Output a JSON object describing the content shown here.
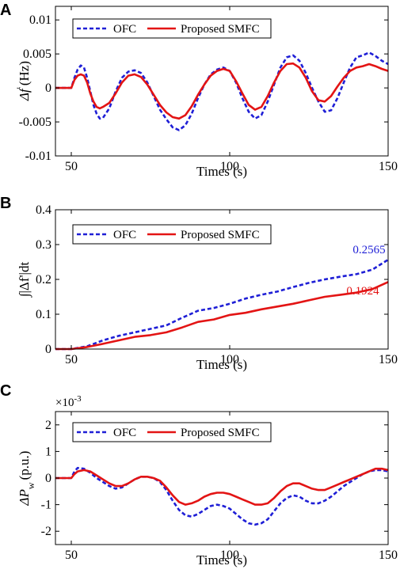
{
  "chart_data": [
    {
      "panel": "A",
      "type": "line",
      "xlabel": "Times (s)",
      "ylabel_main": "Δf",
      "ylabel_sup": "'",
      "ylabel_unit": "(Hz)",
      "xlim": [
        45,
        150
      ],
      "ylim": [
        -0.01,
        0.012
      ],
      "xticks": [
        50,
        100,
        150
      ],
      "xtick_labels": [
        "50",
        "100",
        "150"
      ],
      "yticks": [
        -0.01,
        -0.005,
        0,
        0.005,
        0.01
      ],
      "ytick_labels": [
        "-0.01",
        "-0.005",
        "0",
        "0.005",
        "0.01"
      ],
      "legend": "top-left",
      "series": [
        {
          "name": "OFC",
          "color": "#1f1fd6",
          "dash": true,
          "x": [
            45,
            50,
            51,
            52,
            53,
            54,
            55,
            56,
            57,
            58,
            59,
            60,
            62,
            64,
            66,
            68,
            70,
            72,
            74,
            76,
            78,
            80,
            82,
            84,
            86,
            88,
            90,
            92,
            94,
            96,
            98,
            100,
            102,
            104,
            106,
            108,
            110,
            112,
            114,
            116,
            118,
            120,
            122,
            124,
            126,
            128,
            130,
            132,
            134,
            136,
            138,
            140,
            142,
            144,
            146,
            148,
            150
          ],
          "y": [
            0,
            0,
            0.0015,
            0.0027,
            0.0033,
            0.003,
            0.0015,
            -0.0005,
            -0.0025,
            -0.0038,
            -0.0045,
            -0.0044,
            -0.003,
            -0.0005,
            0.0015,
            0.0024,
            0.0026,
            0.0022,
            0.0008,
            -0.0012,
            -0.0032,
            -0.0046,
            -0.0058,
            -0.0062,
            -0.0055,
            -0.0038,
            -0.0015,
            0.0005,
            0.002,
            0.0027,
            0.003,
            0.0025,
            0.0008,
            -0.0015,
            -0.0035,
            -0.0045,
            -0.004,
            -0.002,
            0.0005,
            0.003,
            0.0045,
            0.0048,
            0.004,
            0.0022,
            0.0,
            -0.002,
            -0.0035,
            -0.0033,
            -0.0015,
            0.0008,
            0.003,
            0.0045,
            0.0048,
            0.0052,
            0.0047,
            0.004,
            0.0035
          ]
        },
        {
          "name": "Proposed SMFC",
          "color": "#e31414",
          "dash": false,
          "x": [
            45,
            50,
            51,
            52,
            53,
            54,
            55,
            56,
            57,
            58,
            59,
            60,
            62,
            64,
            66,
            68,
            70,
            72,
            74,
            76,
            78,
            80,
            82,
            84,
            86,
            88,
            90,
            92,
            94,
            96,
            98,
            100,
            102,
            104,
            106,
            108,
            110,
            112,
            114,
            116,
            118,
            120,
            122,
            124,
            126,
            128,
            130,
            132,
            134,
            136,
            138,
            140,
            142,
            144,
            146,
            148,
            150
          ],
          "y": [
            0,
            0,
            0.0012,
            0.0018,
            0.002,
            0.0018,
            0.0008,
            -0.0008,
            -0.002,
            -0.0028,
            -0.003,
            -0.0028,
            -0.0022,
            -0.0008,
            0.0008,
            0.0018,
            0.002,
            0.0016,
            0.0005,
            -0.001,
            -0.0025,
            -0.0036,
            -0.0043,
            -0.0045,
            -0.004,
            -0.0027,
            -0.001,
            0.0005,
            0.0018,
            0.0025,
            0.0028,
            0.0025,
            0.001,
            -0.0008,
            -0.0025,
            -0.0032,
            -0.0028,
            -0.0012,
            0.0008,
            0.0025,
            0.0035,
            0.0036,
            0.003,
            0.0015,
            -0.0005,
            -0.0018,
            -0.002,
            -0.0012,
            0.0002,
            0.0015,
            0.0025,
            0.003,
            0.0032,
            0.0035,
            0.0032,
            0.0028,
            0.0025
          ]
        }
      ]
    },
    {
      "panel": "B",
      "type": "line",
      "xlabel": "Times (s)",
      "ylabel": "∫|Δf'|dt",
      "xlim": [
        45,
        150
      ],
      "ylim": [
        0,
        0.4
      ],
      "xticks": [
        50,
        100,
        150
      ],
      "xtick_labels": [
        "50",
        "100",
        "150"
      ],
      "yticks": [
        0,
        0.1,
        0.2,
        0.3,
        0.4
      ],
      "ytick_labels": [
        "0",
        "0.1",
        "0.2",
        "0.3",
        "0.4"
      ],
      "legend": "top-left",
      "annotations": [
        {
          "text": "0.2565",
          "color": "#1f1fd6",
          "x": 144,
          "y": 0.275
        },
        {
          "text": "0.1924",
          "color": "#e31414",
          "x": 142,
          "y": 0.157
        }
      ],
      "series": [
        {
          "name": "OFC",
          "color": "#1f1fd6",
          "dash": true,
          "x": [
            45,
            50,
            55,
            60,
            65,
            70,
            75,
            80,
            85,
            90,
            95,
            100,
            105,
            110,
            115,
            120,
            125,
            130,
            135,
            140,
            145,
            150
          ],
          "y": [
            0,
            0,
            0.008,
            0.025,
            0.038,
            0.048,
            0.058,
            0.068,
            0.09,
            0.11,
            0.118,
            0.13,
            0.145,
            0.156,
            0.165,
            0.178,
            0.19,
            0.2,
            0.208,
            0.215,
            0.228,
            0.2565
          ]
        },
        {
          "name": "Proposed SMFC",
          "color": "#e31414",
          "dash": false,
          "x": [
            45,
            50,
            55,
            60,
            65,
            70,
            75,
            80,
            85,
            90,
            95,
            100,
            105,
            110,
            115,
            120,
            125,
            130,
            135,
            140,
            145,
            150
          ],
          "y": [
            0,
            0,
            0.006,
            0.015,
            0.025,
            0.035,
            0.04,
            0.048,
            0.062,
            0.078,
            0.085,
            0.098,
            0.104,
            0.114,
            0.122,
            0.13,
            0.14,
            0.15,
            0.156,
            0.162,
            0.172,
            0.1924
          ]
        }
      ]
    },
    {
      "panel": "C",
      "type": "line",
      "xlabel": "Times (s)",
      "ylabel_main": "ΔP",
      "ylabel_sub": "w",
      "ylabel_unit": "(p.u.)",
      "scale_text": "×10",
      "scale_exp": "-3",
      "xlim": [
        45,
        150
      ],
      "ylim": [
        -2.5,
        2.5
      ],
      "xticks": [
        50,
        100,
        150
      ],
      "xtick_labels": [
        "50",
        "100",
        "150"
      ],
      "yticks": [
        -2,
        -1,
        0,
        1,
        2
      ],
      "ytick_labels": [
        "-2",
        "-1",
        "0",
        "1",
        "2"
      ],
      "legend": "top-left",
      "series": [
        {
          "name": "OFC",
          "color": "#1f1fd6",
          "dash": true,
          "x": [
            45,
            50,
            51,
            52,
            54,
            56,
            58,
            60,
            62,
            64,
            66,
            68,
            70,
            72,
            74,
            76,
            78,
            80,
            82,
            84,
            86,
            88,
            90,
            92,
            94,
            96,
            98,
            100,
            102,
            104,
            106,
            108,
            110,
            112,
            114,
            116,
            118,
            120,
            122,
            124,
            126,
            128,
            130,
            132,
            134,
            136,
            138,
            140,
            142,
            144,
            146,
            148,
            150
          ],
          "y": [
            0,
            0,
            0.25,
            0.38,
            0.35,
            0.2,
            0.0,
            -0.15,
            -0.3,
            -0.4,
            -0.35,
            -0.2,
            -0.05,
            0.05,
            0.05,
            0.0,
            -0.15,
            -0.45,
            -0.85,
            -1.2,
            -1.4,
            -1.45,
            -1.35,
            -1.2,
            -1.05,
            -1.0,
            -1.05,
            -1.15,
            -1.35,
            -1.55,
            -1.7,
            -1.75,
            -1.7,
            -1.55,
            -1.25,
            -0.95,
            -0.75,
            -0.65,
            -0.7,
            -0.85,
            -0.95,
            -0.95,
            -0.85,
            -0.7,
            -0.5,
            -0.3,
            -0.15,
            0.0,
            0.15,
            0.25,
            0.3,
            0.3,
            0.25
          ]
        },
        {
          "name": "Proposed SMFC",
          "color": "#e31414",
          "dash": false,
          "x": [
            45,
            50,
            51,
            52,
            54,
            56,
            58,
            60,
            62,
            64,
            66,
            68,
            70,
            72,
            74,
            76,
            78,
            80,
            82,
            84,
            86,
            88,
            90,
            92,
            94,
            96,
            98,
            100,
            102,
            104,
            106,
            108,
            110,
            112,
            114,
            116,
            118,
            120,
            122,
            124,
            126,
            128,
            130,
            132,
            134,
            136,
            138,
            140,
            142,
            144,
            146,
            148,
            150
          ],
          "y": [
            0,
            0,
            0.15,
            0.25,
            0.3,
            0.25,
            0.1,
            -0.05,
            -0.2,
            -0.3,
            -0.3,
            -0.2,
            -0.05,
            0.05,
            0.05,
            0.0,
            -0.1,
            -0.35,
            -0.65,
            -0.9,
            -1.0,
            -0.95,
            -0.85,
            -0.7,
            -0.6,
            -0.55,
            -0.55,
            -0.6,
            -0.7,
            -0.8,
            -0.9,
            -1.0,
            -1.0,
            -0.95,
            -0.75,
            -0.5,
            -0.3,
            -0.2,
            -0.2,
            -0.3,
            -0.4,
            -0.45,
            -0.45,
            -0.35,
            -0.25,
            -0.15,
            -0.05,
            0.05,
            0.15,
            0.25,
            0.35,
            0.35,
            0.3
          ]
        }
      ]
    }
  ]
}
